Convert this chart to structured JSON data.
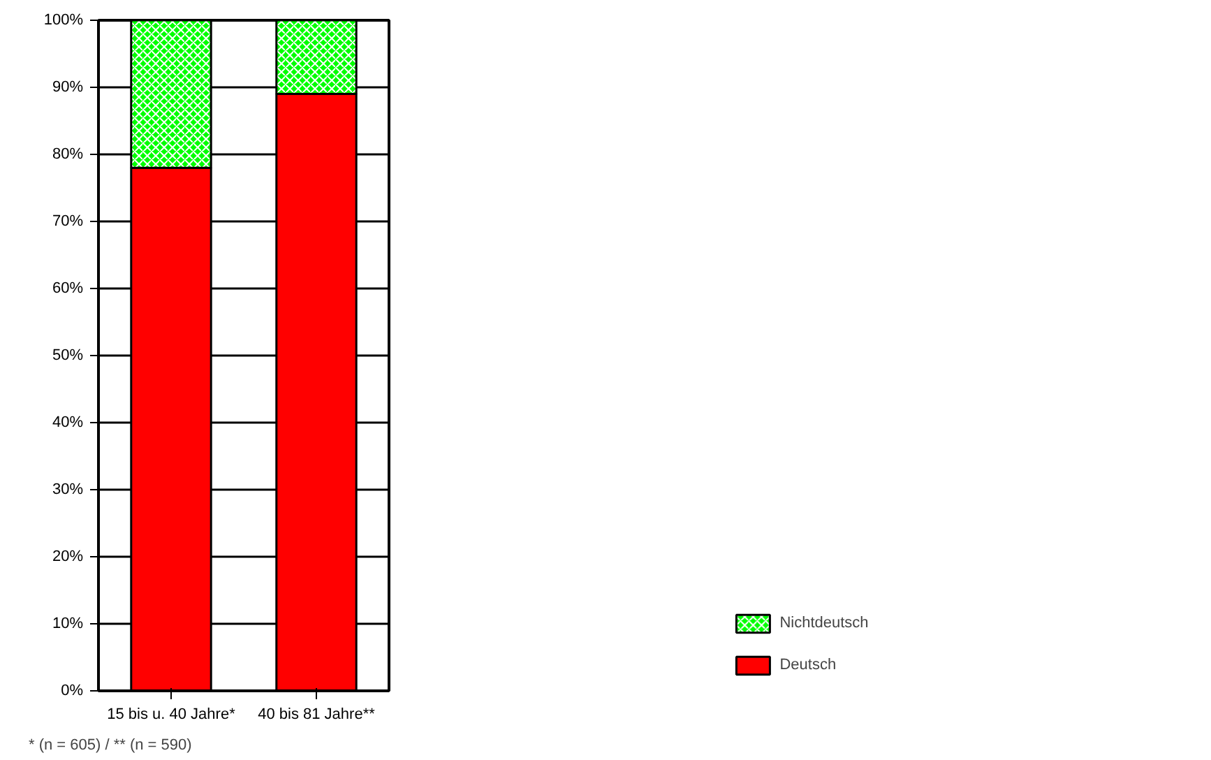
{
  "chart_data": {
    "type": "bar",
    "stacked": true,
    "categories": [
      "15 bis u. 40 Jahre*",
      "40 bis 81 Jahre**"
    ],
    "series": [
      {
        "name": "Deutsch",
        "color": "#ff0000",
        "values": [
          78,
          89
        ]
      },
      {
        "name": "Nichtdeutsch",
        "color": "#00ff00",
        "values": [
          22,
          11
        ]
      }
    ],
    "ylim": [
      0,
      100
    ],
    "yticks": [
      {
        "value": 0,
        "label": "0%"
      },
      {
        "value": 10,
        "label": "10%"
      },
      {
        "value": 20,
        "label": "20%"
      },
      {
        "value": 30,
        "label": "30%"
      },
      {
        "value": 40,
        "label": "40%"
      },
      {
        "value": 50,
        "label": "50%"
      },
      {
        "value": 60,
        "label": "60%"
      },
      {
        "value": 70,
        "label": "70%"
      },
      {
        "value": 80,
        "label": "80%"
      },
      {
        "value": 90,
        "label": "90%"
      },
      {
        "value": 100,
        "label": "100%"
      }
    ],
    "grid": "y",
    "legend": "bottom right",
    "annotations": [
      "* (n = 605)   /   ** (n = 590)"
    ]
  }
}
